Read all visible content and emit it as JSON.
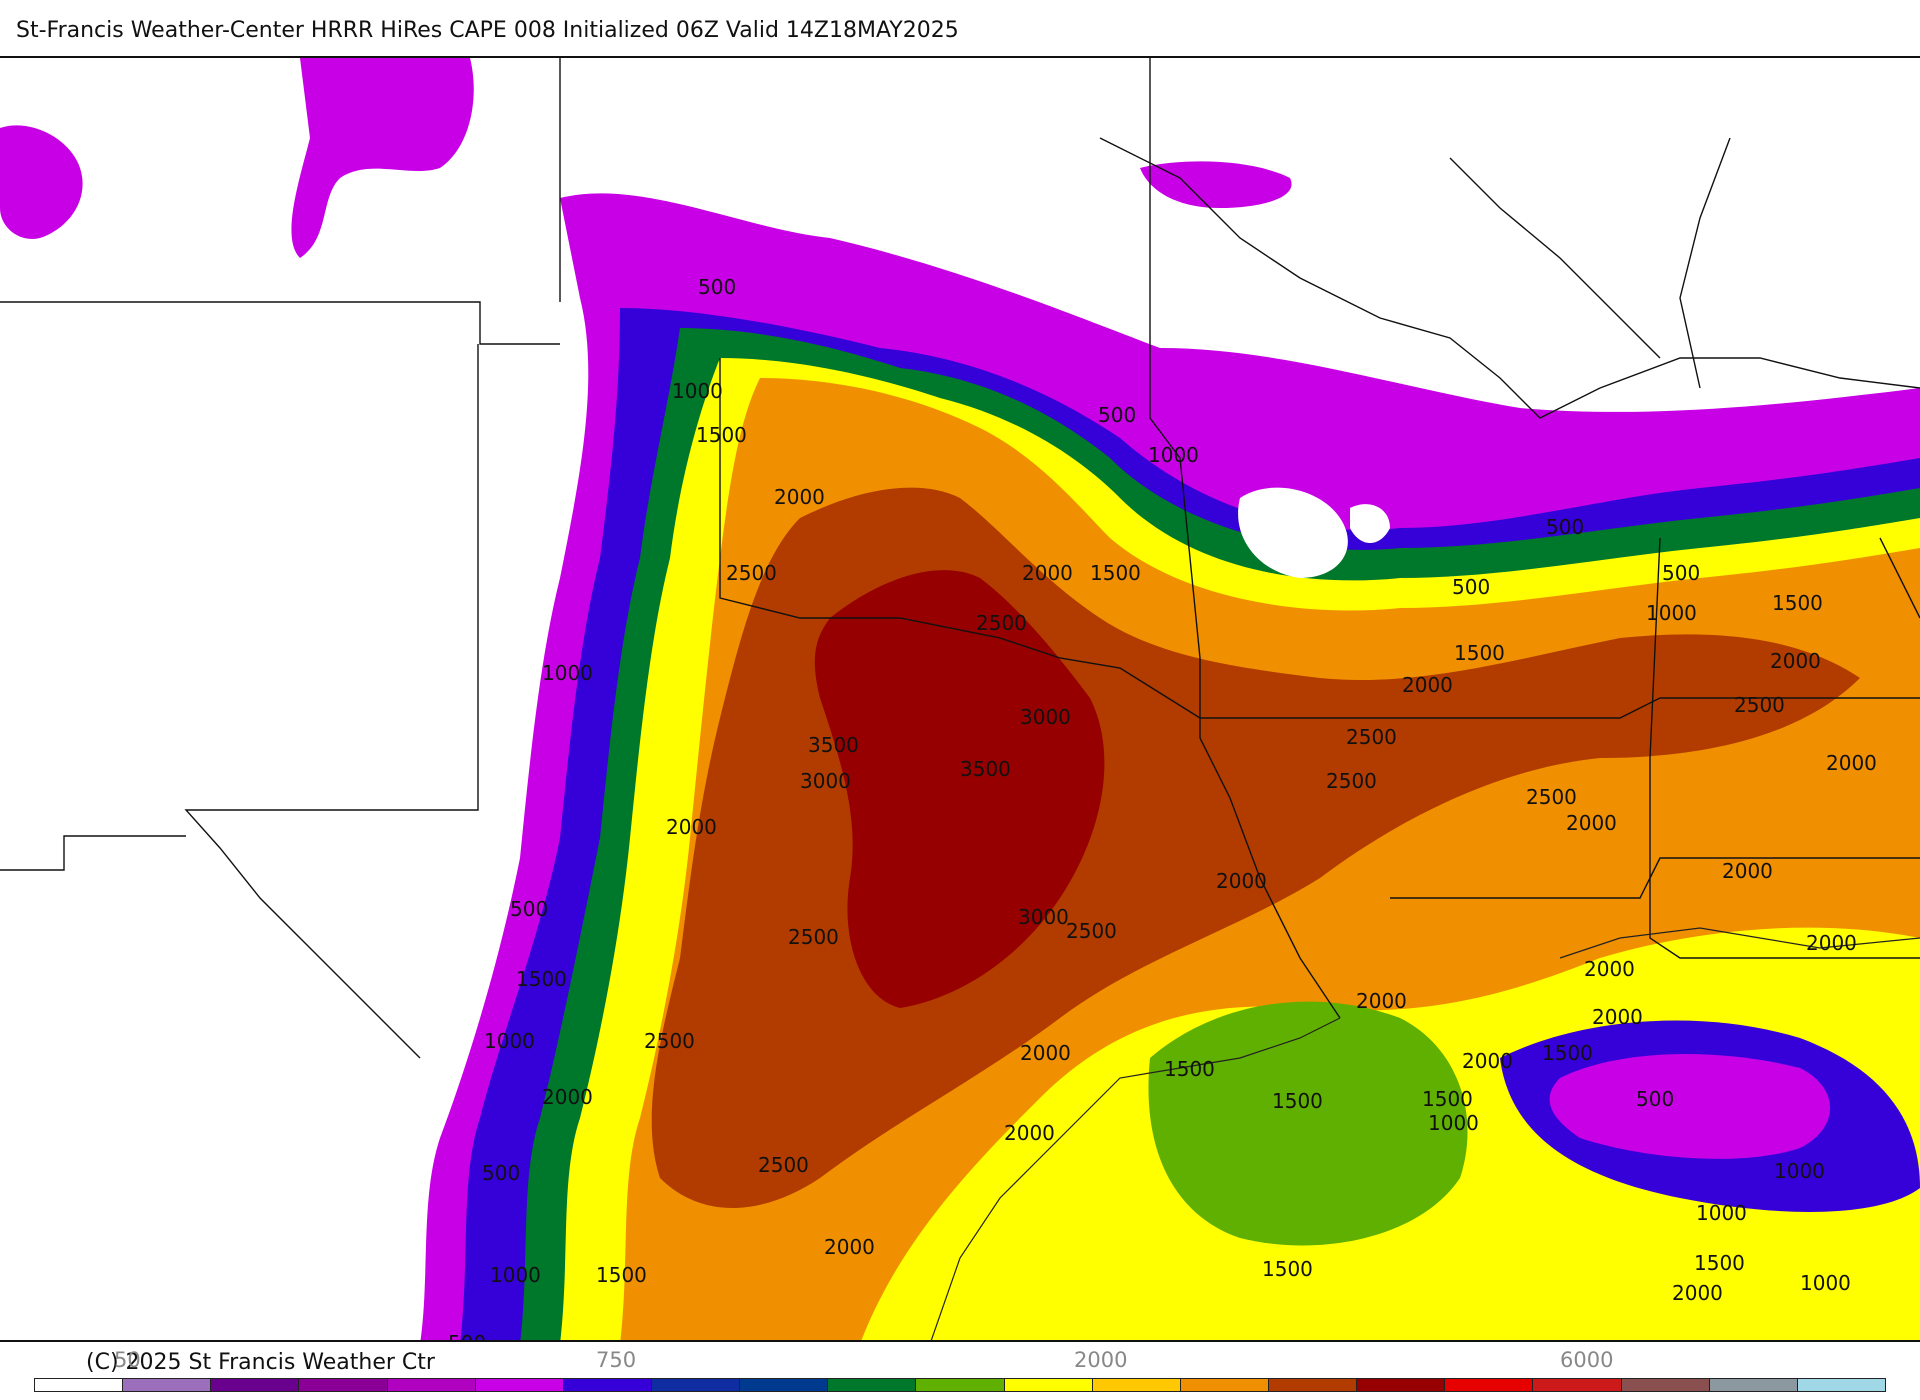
{
  "header": {
    "title": "St-Francis Weather-Center HRRR HiRes CAPE  008 Initialized  06Z Valid 14Z18MAY2025"
  },
  "footer": {
    "copyright": "(C) 2025 St Francis Weather Ctr"
  },
  "colorbar": {
    "colors": [
      "#ffffff",
      "#9c6fbd",
      "#6a008e",
      "#8a0097",
      "#b000c0",
      "#c800e6",
      "#3600d8",
      "#0f2da0",
      "#003a8f",
      "#00782b",
      "#5fb000",
      "#ffff00",
      "#ffc800",
      "#f09000",
      "#b23c00",
      "#960000",
      "#e60000",
      "#cc1a1a",
      "#8a5050",
      "#8c98a0",
      "#a0d8e8"
    ],
    "tick_labels": [
      "50",
      "750",
      "2000",
      "6000"
    ]
  },
  "contour_labels": [
    "500",
    "1000",
    "1500",
    "2000",
    "2500",
    "3000",
    "3500"
  ]
}
